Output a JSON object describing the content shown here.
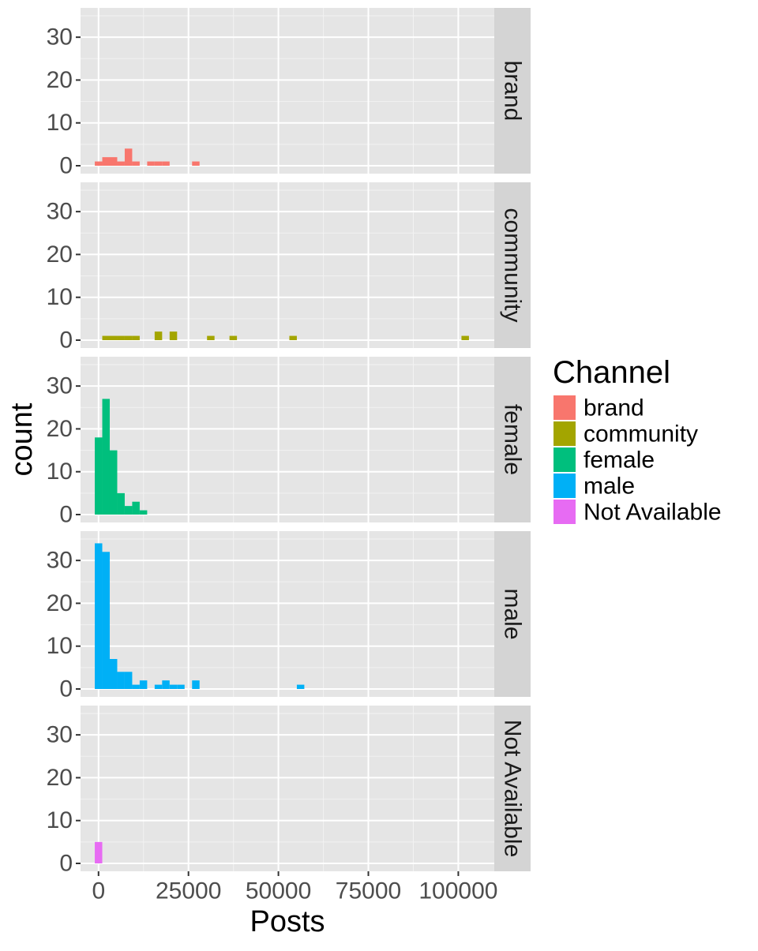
{
  "chart_data": {
    "type": "bar",
    "subtype": "faceted-histogram",
    "xlabel": "Posts",
    "ylabel": "count",
    "xlim": [
      -5000,
      110000
    ],
    "ylim": [
      0,
      35
    ],
    "x_ticks": [
      0,
      25000,
      50000,
      75000,
      100000
    ],
    "x_tick_labels": [
      "0",
      "25000",
      "50000",
      "75000",
      "100000"
    ],
    "y_ticks": [
      0,
      10,
      20,
      30
    ],
    "y_tick_labels": [
      "0",
      "10",
      "20",
      "30"
    ],
    "bin_width": 2080,
    "grid": true,
    "panel_background": "#e5e5e5",
    "strip_background": "#d4d4d4",
    "legend": {
      "title": "Channel",
      "position": "right",
      "entries": [
        "brand",
        "community",
        "female",
        "male",
        "Not Available"
      ]
    },
    "facets": [
      {
        "label": "brand",
        "color": "#f8766d",
        "bins": [
          {
            "x": 0,
            "count": 1
          },
          {
            "x": 2080,
            "count": 2
          },
          {
            "x": 4160,
            "count": 2
          },
          {
            "x": 6240,
            "count": 1
          },
          {
            "x": 8320,
            "count": 4
          },
          {
            "x": 10400,
            "count": 1
          },
          {
            "x": 14560,
            "count": 1
          },
          {
            "x": 16640,
            "count": 1
          },
          {
            "x": 18720,
            "count": 1
          },
          {
            "x": 27040,
            "count": 1
          }
        ]
      },
      {
        "label": "community",
        "color": "#a3a500",
        "bins": [
          {
            "x": 2080,
            "count": 1
          },
          {
            "x": 4160,
            "count": 1
          },
          {
            "x": 6240,
            "count": 1
          },
          {
            "x": 8320,
            "count": 1
          },
          {
            "x": 10400,
            "count": 1
          },
          {
            "x": 16640,
            "count": 2
          },
          {
            "x": 20800,
            "count": 2
          },
          {
            "x": 31200,
            "count": 1
          },
          {
            "x": 37440,
            "count": 1
          },
          {
            "x": 54080,
            "count": 1
          },
          {
            "x": 101920,
            "count": 1
          }
        ]
      },
      {
        "label": "female",
        "color": "#00bf7d",
        "bins": [
          {
            "x": 0,
            "count": 18
          },
          {
            "x": 2080,
            "count": 27
          },
          {
            "x": 4160,
            "count": 15
          },
          {
            "x": 6240,
            "count": 5
          },
          {
            "x": 8320,
            "count": 2
          },
          {
            "x": 10400,
            "count": 3
          },
          {
            "x": 12480,
            "count": 1
          }
        ]
      },
      {
        "label": "male",
        "color": "#00b0f6",
        "bins": [
          {
            "x": 0,
            "count": 34
          },
          {
            "x": 2080,
            "count": 32
          },
          {
            "x": 4160,
            "count": 7
          },
          {
            "x": 6240,
            "count": 4
          },
          {
            "x": 8320,
            "count": 4
          },
          {
            "x": 10400,
            "count": 1
          },
          {
            "x": 12480,
            "count": 2
          },
          {
            "x": 16640,
            "count": 1
          },
          {
            "x": 18720,
            "count": 2
          },
          {
            "x": 20800,
            "count": 1
          },
          {
            "x": 22880,
            "count": 1
          },
          {
            "x": 27040,
            "count": 2
          },
          {
            "x": 56160,
            "count": 1
          }
        ]
      },
      {
        "label": "Not Available",
        "color": "#e76bf3",
        "bins": [
          {
            "x": 0,
            "count": 5
          }
        ]
      }
    ]
  }
}
